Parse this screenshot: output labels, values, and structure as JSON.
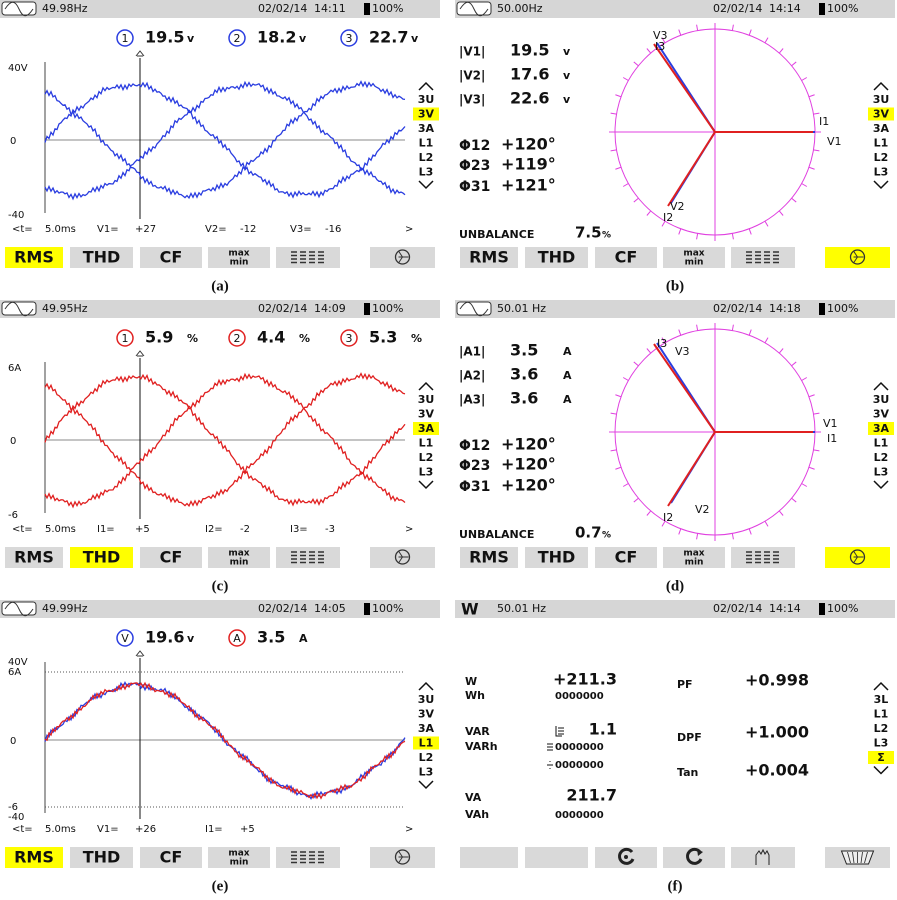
{
  "panels": [
    {
      "caption": "(a)",
      "kind": "scope",
      "status": {
        "frequency": "49.98Hz",
        "date": "02/02/14",
        "time": "14:11",
        "battery": "100%"
      },
      "readings": [
        {
          "marker": "1",
          "value": "19.5",
          "unit": "v",
          "color": "#2a3de0"
        },
        {
          "marker": "2",
          "value": "18.2",
          "unit": "v",
          "color": "#2a3de0"
        },
        {
          "marker": "3",
          "value": "22.7",
          "unit": "v",
          "color": "#2a3de0"
        }
      ],
      "traces": [
        "#2a3de0",
        "#2a3de0",
        "#2a3de0"
      ],
      "axis_top": [
        "40V"
      ],
      "axis_zero": "0",
      "axis_bottom": [
        "-40"
      ],
      "cursor": [
        "<t=",
        "5.0ms",
        "V1=",
        "+27",
        "V2=",
        "-12",
        "V3=",
        "-16",
        ">"
      ],
      "menu": [
        {
          "label": "3U"
        },
        {
          "label": "3V",
          "selected": true
        },
        {
          "label": "3A"
        },
        {
          "label": "L1"
        },
        {
          "label": "L2"
        },
        {
          "label": "L3"
        }
      ],
      "tabs": [
        {
          "label": [
            "RMS"
          ],
          "selected": true
        },
        {
          "label": [
            "THD"
          ]
        },
        {
          "label": [
            "CF"
          ]
        },
        {
          "label": [
            "max",
            "min"
          ]
        },
        {
          "icon": "bars"
        },
        {
          "icon": "phasor"
        }
      ]
    },
    {
      "caption": "(b)",
      "kind": "phasor",
      "status": {
        "frequency": "50.00Hz",
        "date": "02/02/14",
        "time": "14:14",
        "battery": "100%"
      },
      "magnitudes": [
        {
          "label": "|V1|",
          "value": "19.5",
          "unit": "v"
        },
        {
          "label": "|V2|",
          "value": "17.6",
          "unit": "v"
        },
        {
          "label": "|V3|",
          "value": "22.6",
          "unit": "v"
        }
      ],
      "angles": [
        {
          "label": "Φ12",
          "value": "+120°"
        },
        {
          "label": "Φ23",
          "value": "+119°"
        },
        {
          "label": "Φ31",
          "value": "+121°"
        }
      ],
      "unbalance": {
        "label": "UNBALANCE",
        "value": "7.5",
        "unit": "%"
      },
      "vectors": [
        {
          "text": "V3",
          "color": "#2a3de0"
        },
        {
          "text": "I3",
          "color": "#e02020"
        },
        {
          "text": "I1",
          "color": "#e02020"
        },
        {
          "text": "V1",
          "color": "#2a3de0"
        },
        {
          "text": "V2",
          "color": "#2a3de0"
        },
        {
          "text": "I2",
          "color": "#e02020"
        }
      ],
      "menu": [
        {
          "label": "3U"
        },
        {
          "label": "3V",
          "selected": true
        },
        {
          "label": "3A"
        },
        {
          "label": "L1"
        },
        {
          "label": "L2"
        },
        {
          "label": "L3"
        }
      ],
      "tabs": [
        {
          "label": [
            "RMS"
          ]
        },
        {
          "label": [
            "THD"
          ]
        },
        {
          "label": [
            "CF"
          ]
        },
        {
          "label": [
            "max",
            "min"
          ]
        },
        {
          "icon": "bars"
        },
        {
          "icon": "phasor",
          "selected": true
        }
      ]
    },
    {
      "caption": "(c)",
      "kind": "scope",
      "status": {
        "frequency": "49.95Hz",
        "date": "02/02/14",
        "time": "14:09",
        "battery": "100%"
      },
      "readings": [
        {
          "marker": "1",
          "value": "5.9",
          "unit": "%",
          "color": "#e02020"
        },
        {
          "marker": "2",
          "value": "4.4",
          "unit": "%",
          "color": "#e02020"
        },
        {
          "marker": "3",
          "value": "5.3",
          "unit": "%",
          "color": "#e02020"
        }
      ],
      "traces": [
        "#e02020",
        "#e02020",
        "#e02020"
      ],
      "axis_top": [
        "6A"
      ],
      "axis_zero": "0",
      "axis_bottom": [
        "-6"
      ],
      "cursor": [
        "<t=",
        "5.0ms",
        "I1=",
        "+5",
        "I2=",
        "-2",
        "I3=",
        "-3",
        ">"
      ],
      "menu": [
        {
          "label": "3U"
        },
        {
          "label": "3V"
        },
        {
          "label": "3A",
          "selected": true
        },
        {
          "label": "L1"
        },
        {
          "label": "L2"
        },
        {
          "label": "L3"
        }
      ],
      "tabs": [
        {
          "label": [
            "RMS"
          ]
        },
        {
          "label": [
            "THD"
          ],
          "selected": true
        },
        {
          "label": [
            "CF"
          ]
        },
        {
          "label": [
            "max",
            "min"
          ]
        },
        {
          "icon": "bars"
        },
        {
          "icon": "phasor"
        }
      ]
    },
    {
      "caption": "(d)",
      "kind": "phasor",
      "status": {
        "frequency": "50.01 Hz",
        "date": "02/02/14",
        "time": "14:18",
        "battery": "100%"
      },
      "magnitudes": [
        {
          "label": "|A1|",
          "value": "3.5",
          "unit": "A"
        },
        {
          "label": "|A2|",
          "value": "3.6",
          "unit": "A"
        },
        {
          "label": "|A3|",
          "value": "3.6",
          "unit": "A"
        }
      ],
      "angles": [
        {
          "label": "Φ12",
          "value": "+120°"
        },
        {
          "label": "Φ23",
          "value": "+120°"
        },
        {
          "label": "Φ31",
          "value": "+120°"
        }
      ],
      "unbalance": {
        "label": "UNBALANCE",
        "value": "0.7",
        "unit": "%"
      },
      "vectors": [
        {
          "text": "I3",
          "color": "#e02020"
        },
        {
          "text": "V3",
          "color": "#2a3de0"
        },
        {
          "text": "V1",
          "color": "#2a3de0"
        },
        {
          "text": "I1",
          "color": "#e02020"
        },
        {
          "text": "I2",
          "color": "#e02020"
        },
        {
          "text": "V2",
          "color": "#2a3de0"
        }
      ],
      "menu": [
        {
          "label": "3U"
        },
        {
          "label": "3V"
        },
        {
          "label": "3A",
          "selected": true
        },
        {
          "label": "L1"
        },
        {
          "label": "L2"
        },
        {
          "label": "L3"
        }
      ],
      "tabs": [
        {
          "label": [
            "RMS"
          ]
        },
        {
          "label": [
            "THD"
          ]
        },
        {
          "label": [
            "CF"
          ]
        },
        {
          "label": [
            "max",
            "min"
          ]
        },
        {
          "icon": "bars"
        },
        {
          "icon": "phasor",
          "selected": true
        }
      ]
    },
    {
      "caption": "(e)",
      "kind": "scope",
      "status": {
        "frequency": "49.99Hz",
        "date": "02/02/14",
        "time": "14:05",
        "battery": "100%"
      },
      "readings": [
        {
          "marker": "V",
          "value": "19.6",
          "unit": "v",
          "color": "#2a3de0"
        },
        {
          "marker": "A",
          "value": "3.5",
          "unit": "A",
          "color": "#e02020"
        }
      ],
      "traces": [
        "#2a3de0",
        "#e02020"
      ],
      "axis_top": [
        "40V",
        "6A"
      ],
      "axis_zero": "0",
      "axis_bottom": [
        "-6",
        "-40"
      ],
      "cursor": [
        "<t=",
        "5.0ms",
        "V1=",
        "+26",
        "I1=",
        "+5",
        ">"
      ],
      "menu": [
        {
          "label": "3U"
        },
        {
          "label": "3V"
        },
        {
          "label": "3A"
        },
        {
          "label": "L1",
          "selected": true
        },
        {
          "label": "L2"
        },
        {
          "label": "L3"
        }
      ],
      "tabs": [
        {
          "label": [
            "RMS"
          ],
          "selected": true
        },
        {
          "label": [
            "THD"
          ]
        },
        {
          "label": [
            "CF"
          ]
        },
        {
          "label": [
            "max",
            "min"
          ]
        },
        {
          "icon": "bars"
        },
        {
          "icon": "phasor"
        }
      ]
    },
    {
      "caption": "(f)",
      "kind": "power",
      "status": {
        "mode": "W",
        "frequency": "50.01 Hz",
        "date": "02/02/14",
        "time": "14:14",
        "battery": "100%"
      },
      "left": [
        {
          "label": "W",
          "value": "+211.3"
        },
        {
          "label": "Wh",
          "value": "0000000"
        },
        {
          "label": "VAR",
          "value": "1.1"
        },
        {
          "label": "VARh",
          "value": "0000000"
        },
        {
          "value": "0000000"
        },
        {
          "label": "VA",
          "value": "211.7"
        },
        {
          "label": "VAh",
          "value": "0000000"
        }
      ],
      "right": [
        {
          "label": "PF",
          "value": "+0.998"
        },
        {
          "label": "DPF",
          "value": "+1.000"
        },
        {
          "label": "Tan",
          "value": "+0.004"
        }
      ],
      "menu": [
        {
          "label": "3L"
        },
        {
          "label": "L1"
        },
        {
          "label": "L2"
        },
        {
          "label": "L3"
        },
        {
          "label": "Σ",
          "selected": true
        }
      ],
      "tabs": [
        {
          "icon": "blank"
        },
        {
          "icon": "blank"
        },
        {
          "icon": "g"
        },
        {
          "icon": "c"
        },
        {
          "icon": "hand"
        },
        {
          "icon": "basket"
        }
      ]
    }
  ]
}
